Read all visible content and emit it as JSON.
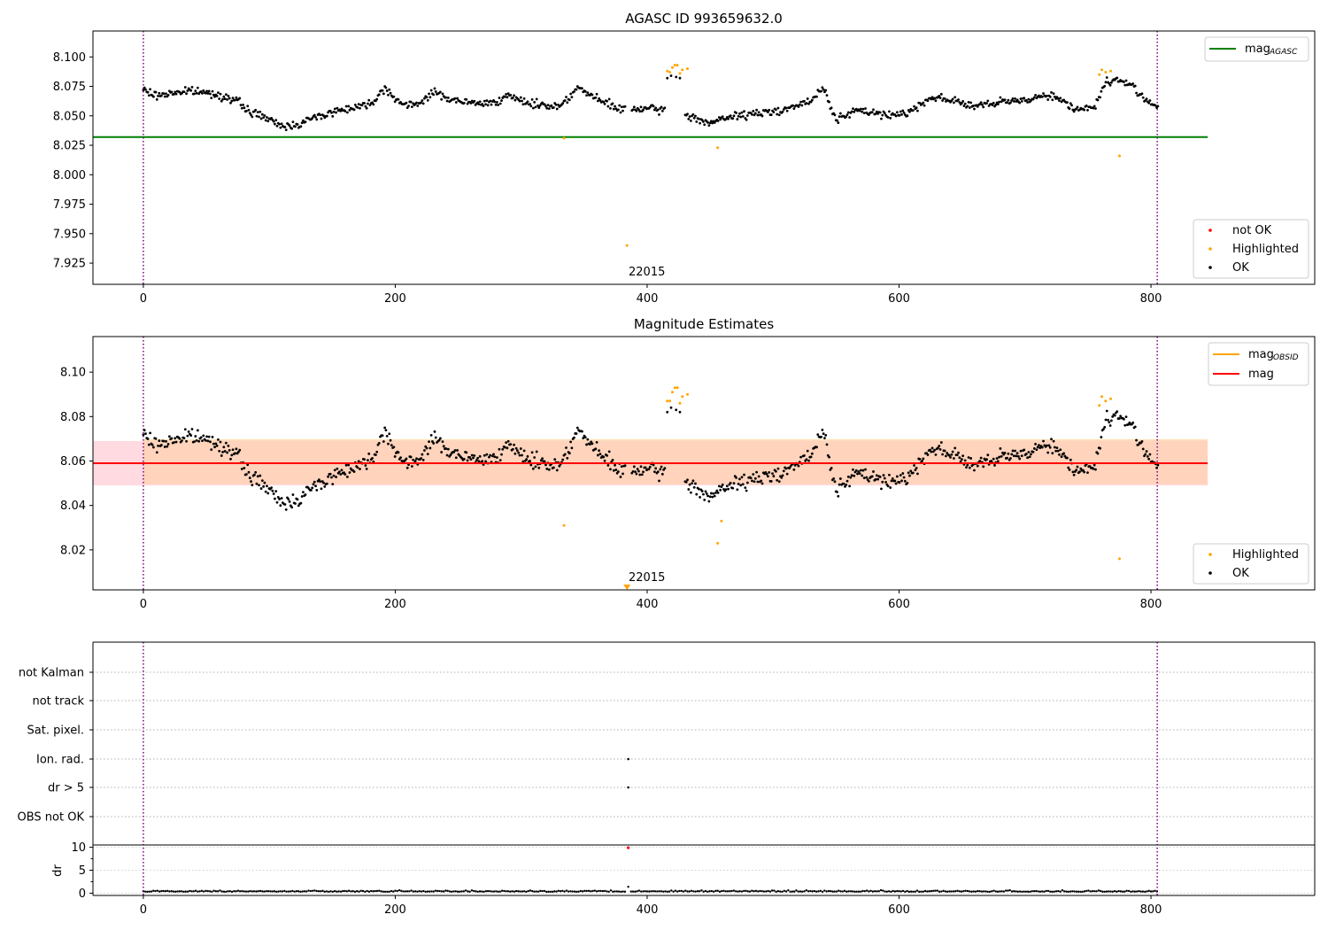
{
  "chart_data": [
    {
      "type": "scatter",
      "title": "AGASC ID 993659632.0",
      "xlim": [
        -40,
        930
      ],
      "ylim": [
        7.907,
        8.122
      ],
      "xticks": [
        0,
        200,
        400,
        600,
        800
      ],
      "yticks": [
        7.925,
        7.95,
        7.975,
        8.0,
        8.025,
        8.05,
        8.075,
        8.1
      ],
      "ytick_labels": [
        "7.925",
        "7.950",
        "7.975",
        "8.000",
        "8.025",
        "8.050",
        "8.075",
        "8.100"
      ],
      "mag_agasc": 8.032,
      "mag_agasc_range": [
        -40,
        845
      ],
      "vlines": [
        0,
        805
      ],
      "annotation": {
        "text": "22015",
        "x": 385,
        "y": 7.915
      },
      "legend_lines": [
        {
          "label": "mag",
          "sub": "AGASC",
          "color": "#008000"
        }
      ],
      "legend_markers": [
        {
          "label": "not OK",
          "color": "#ff0000"
        },
        {
          "label": "Highlighted",
          "color": "#ffa500"
        },
        {
          "label": "OK",
          "color": "#000000"
        }
      ],
      "highlighted_points": [
        [
          334,
          8.031
        ],
        [
          384,
          7.94
        ],
        [
          416,
          8.088
        ],
        [
          418,
          8.087
        ],
        [
          420,
          8.091
        ],
        [
          422,
          8.093
        ],
        [
          424,
          8.093
        ],
        [
          426,
          8.086
        ],
        [
          428,
          8.089
        ],
        [
          432,
          8.09
        ],
        [
          456,
          8.023
        ],
        [
          759,
          8.085
        ],
        [
          761,
          8.089
        ],
        [
          764,
          8.087
        ],
        [
          768,
          8.088
        ],
        [
          775,
          8.016
        ]
      ],
      "outlier_ok_points": [
        [
          416,
          8.082
        ],
        [
          419,
          8.084
        ],
        [
          423,
          8.083
        ],
        [
          426,
          8.082
        ]
      ],
      "ok_baseline": [
        [
          0,
          8.072
        ],
        [
          10,
          8.067
        ],
        [
          25,
          8.07
        ],
        [
          40,
          8.071
        ],
        [
          60,
          8.068
        ],
        [
          75,
          8.062
        ],
        [
          85,
          8.053
        ],
        [
          95,
          8.05
        ],
        [
          105,
          8.043
        ],
        [
          115,
          8.041
        ],
        [
          125,
          8.044
        ],
        [
          140,
          8.05
        ],
        [
          160,
          8.056
        ],
        [
          180,
          8.06
        ],
        [
          192,
          8.074
        ],
        [
          205,
          8.06
        ],
        [
          215,
          8.058
        ],
        [
          230,
          8.07
        ],
        [
          250,
          8.062
        ],
        [
          270,
          8.06
        ],
        [
          290,
          8.066
        ],
        [
          310,
          8.06
        ],
        [
          330,
          8.058
        ],
        [
          345,
          8.074
        ],
        [
          360,
          8.064
        ],
        [
          380,
          8.055
        ],
        [
          395,
          8.056
        ],
        [
          412,
          8.055
        ],
        [
          432,
          8.05
        ],
        [
          450,
          8.044
        ],
        [
          470,
          8.05
        ],
        [
          490,
          8.052
        ],
        [
          510,
          8.056
        ],
        [
          530,
          8.062
        ],
        [
          540,
          8.074
        ],
        [
          550,
          8.047
        ],
        [
          570,
          8.055
        ],
        [
          590,
          8.05
        ],
        [
          610,
          8.054
        ],
        [
          625,
          8.066
        ],
        [
          640,
          8.064
        ],
        [
          660,
          8.058
        ],
        [
          680,
          8.061
        ],
        [
          700,
          8.064
        ],
        [
          720,
          8.068
        ],
        [
          740,
          8.056
        ],
        [
          755,
          8.057
        ],
        [
          765,
          8.08
        ],
        [
          780,
          8.079
        ],
        [
          795,
          8.065
        ],
        [
          805,
          8.058
        ]
      ]
    },
    {
      "type": "scatter",
      "title": "Magnitude Estimates",
      "xlim": [
        -40,
        930
      ],
      "ylim": [
        8.002,
        8.116
      ],
      "xticks": [
        0,
        200,
        400,
        600,
        800
      ],
      "yticks": [
        8.02,
        8.04,
        8.06,
        8.08,
        8.1
      ],
      "ytick_labels": [
        "8.02",
        "8.04",
        "8.06",
        "8.08",
        "8.10"
      ],
      "mag": 8.059,
      "mag_band": [
        8.049,
        8.069
      ],
      "mag_obsid_band": [
        8.0495,
        8.0695
      ],
      "line_range": [
        -40,
        845
      ],
      "obsid_range": [
        0,
        845
      ],
      "vlines": [
        0,
        805
      ],
      "annotation": {
        "text": "22015",
        "x": 385,
        "y": 8.0045
      },
      "marker_point": [
        384,
        8.0032
      ],
      "legend_lines": [
        {
          "label": "mag",
          "sub": "OBSID",
          "color": "#ffa500"
        },
        {
          "label": "mag",
          "sub": "",
          "color": "#ff0000"
        }
      ],
      "legend_markers": [
        {
          "label": "Highlighted",
          "color": "#ffa500"
        },
        {
          "label": "OK",
          "color": "#000000"
        }
      ],
      "highlighted_points": [
        [
          334,
          8.031
        ],
        [
          416,
          8.087
        ],
        [
          418,
          8.087
        ],
        [
          420,
          8.091
        ],
        [
          422,
          8.093
        ],
        [
          424,
          8.093
        ],
        [
          426,
          8.086
        ],
        [
          428,
          8.089
        ],
        [
          432,
          8.09
        ],
        [
          456,
          8.023
        ],
        [
          459,
          8.033
        ],
        [
          759,
          8.085
        ],
        [
          761,
          8.089
        ],
        [
          764,
          8.087
        ],
        [
          768,
          8.088
        ],
        [
          775,
          8.016
        ]
      ]
    },
    {
      "type": "scatter",
      "title": "",
      "xlim": [
        -40,
        930
      ],
      "xticks": [
        0,
        200,
        400,
        600,
        800
      ],
      "categories": [
        "not Kalman",
        "not track",
        "Sat. pixel.",
        "Ion. rad.",
        "dr > 5",
        "OBS not OK"
      ],
      "flag_points": [
        {
          "category": "Ion. rad.",
          "x": 385
        },
        {
          "category": "dr > 5",
          "x": 385
        }
      ],
      "vlines": [
        0,
        805
      ],
      "dr": {
        "ylabel": "dr",
        "ylim": [
          -0.5,
          10.5
        ],
        "yticks": [
          0,
          5,
          10
        ],
        "baseline": 0.3,
        "red_point": [
          385,
          9.9
        ],
        "spike": [
          385,
          1.4
        ]
      }
    }
  ]
}
